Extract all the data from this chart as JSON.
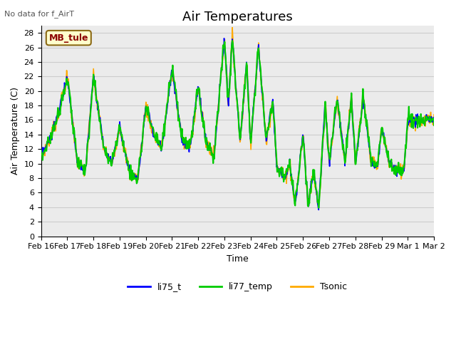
{
  "title": "Air Temperatures",
  "ylabel": "Air Temperature (C)",
  "xlabel": "Time",
  "note": "No data for f_AirT",
  "annotation": "MB_tule",
  "ylim": [
    0,
    29
  ],
  "yticks": [
    0,
    2,
    4,
    6,
    8,
    10,
    12,
    14,
    16,
    18,
    20,
    22,
    24,
    26,
    28
  ],
  "xtick_labels": [
    "Feb 16",
    "Feb 17",
    "Feb 18",
    "Feb 19",
    "Feb 20",
    "Feb 21",
    "Feb 22",
    "Feb 23",
    "Feb 24",
    "Feb 25",
    "Feb 26",
    "Feb 27",
    "Feb 28",
    "Feb 29",
    "Mar 1",
    "Mar 2"
  ],
  "line_colors": [
    "#0000ff",
    "#00cc00",
    "#ffaa00"
  ],
  "line_labels": [
    "li75_t",
    "li77_temp",
    "Tsonic"
  ],
  "background_color": "#ffffff",
  "grid_color": "#cccccc",
  "title_fontsize": 13,
  "label_fontsize": 9,
  "tick_fontsize": 8,
  "ctrl_t": [
    0.0,
    0.3,
    0.6,
    1.0,
    1.4,
    1.7,
    2.0,
    2.4,
    2.7,
    3.0,
    3.4,
    3.7,
    4.0,
    4.3,
    4.6,
    5.0,
    5.4,
    5.7,
    6.0,
    6.3,
    6.6,
    7.0,
    7.15,
    7.3,
    7.6,
    7.85,
    8.0,
    8.3,
    8.6,
    8.85,
    9.0,
    9.3,
    9.5,
    9.7,
    10.0,
    10.2,
    10.4,
    10.6,
    10.85,
    11.0,
    11.3,
    11.6,
    11.85,
    12.0,
    12.3,
    12.6,
    12.85,
    13.0,
    13.3,
    13.6,
    13.85,
    14.0,
    15.0
  ],
  "ctrl_v": [
    11.0,
    13.0,
    16.0,
    22.0,
    10.0,
    9.0,
    22.0,
    12.0,
    10.0,
    15.0,
    8.5,
    8.0,
    18.0,
    14.0,
    12.0,
    23.0,
    13.0,
    12.5,
    20.5,
    13.0,
    11.0,
    27.5,
    18.0,
    27.5,
    13.0,
    24.0,
    13.0,
    26.0,
    13.0,
    19.0,
    9.5,
    8.0,
    10.0,
    4.5,
    14.0,
    4.0,
    9.0,
    4.0,
    18.5,
    10.0,
    19.0,
    10.5,
    19.0,
    10.0,
    19.0,
    10.5,
    9.5,
    15.0,
    10.0,
    9.0,
    9.0,
    16.0,
    16.0
  ]
}
